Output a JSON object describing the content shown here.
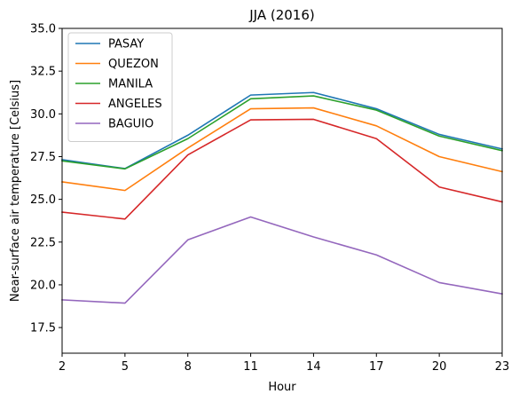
{
  "chart_data": {
    "type": "line",
    "title": "JJA (2016)",
    "xlabel": "Hour",
    "ylabel": "Near-surface air temperature [Celsius]",
    "x": [
      2,
      5,
      8,
      11,
      14,
      17,
      20,
      23
    ],
    "x_ticks": [
      "2",
      "5",
      "8",
      "11",
      "14",
      "17",
      "20",
      "23"
    ],
    "xlim": [
      2,
      23
    ],
    "ylim": [
      16.0,
      35.0
    ],
    "y_ticks": [
      17.5,
      20.0,
      22.5,
      25.0,
      27.5,
      30.0,
      32.5,
      35.0
    ],
    "y_tick_labels": [
      "17.5",
      "20.0",
      "22.5",
      "25.0",
      "27.5",
      "30.0",
      "32.5",
      "35.0"
    ],
    "grid": false,
    "legend_position": "top-left",
    "series": [
      {
        "name": "PASAY",
        "color": "#1f77b4",
        "values": [
          27.32,
          26.8,
          28.75,
          31.1,
          31.25,
          30.3,
          28.8,
          27.95
        ]
      },
      {
        "name": "QUEZON",
        "color": "#ff7f0e",
        "values": [
          26.02,
          25.52,
          28.0,
          30.3,
          30.35,
          29.3,
          27.5,
          26.62
        ]
      },
      {
        "name": "MANILA",
        "color": "#2ca02c",
        "values": [
          27.25,
          26.78,
          28.55,
          30.88,
          31.05,
          30.22,
          28.7,
          27.85
        ]
      },
      {
        "name": "ANGELES",
        "color": "#d62728",
        "values": [
          24.25,
          23.85,
          27.6,
          29.65,
          29.68,
          28.55,
          25.72,
          24.85
        ]
      },
      {
        "name": "BAGUIO",
        "color": "#9467bd",
        "values": [
          19.12,
          18.93,
          22.63,
          23.97,
          22.8,
          21.75,
          20.13,
          19.47
        ]
      }
    ]
  }
}
